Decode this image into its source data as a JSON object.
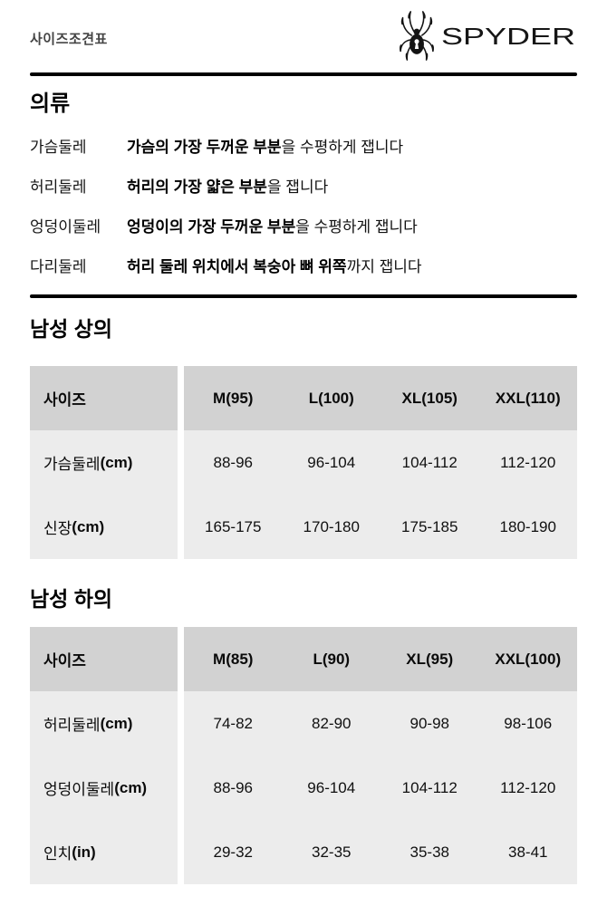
{
  "header": {
    "title": "사이즈조견표",
    "brand": "SPYDER"
  },
  "guide": {
    "heading": "의류",
    "rows": [
      {
        "label": "가슴둘레",
        "bold": "가슴의 가장 두꺼운 부분",
        "rest": "을 수평하게 잽니다"
      },
      {
        "label": "허리둘레",
        "bold": "허리의 가장 얇은 부분",
        "rest": "을 잽니다"
      },
      {
        "label": "엉덩이둘레",
        "bold": "엉덩이의 가장 두꺼운 부분",
        "rest": "을 수평하게 잽니다"
      },
      {
        "label": "다리둘레",
        "bold": "허리 둘레 위치에서 복숭아 뼈 위쪽",
        "rest": "까지 잽니다"
      }
    ]
  },
  "tables": [
    {
      "heading": "남성 상의",
      "header_label": "사이즈",
      "columns": [
        "M(95)",
        "L(100)",
        "XL(105)",
        "XXL(110)"
      ],
      "rows": [
        {
          "label": "가슴둘레",
          "unit": "(cm)",
          "values": [
            "88-96",
            "96-104",
            "104-112",
            "112-120"
          ]
        },
        {
          "label": "신장",
          "unit": "(cm)",
          "values": [
            "165-175",
            "170-180",
            "175-185",
            "180-190"
          ]
        }
      ]
    },
    {
      "heading": "남성 하의",
      "header_label": "사이즈",
      "columns": [
        "M(85)",
        "L(90)",
        "XL(95)",
        "XXL(100)"
      ],
      "rows": [
        {
          "label": "허리둘레",
          "unit": "(cm)",
          "values": [
            "74-82",
            "82-90",
            "90-98",
            "98-106"
          ]
        },
        {
          "label": "엉덩이둘레",
          "unit": "(cm)",
          "values": [
            "88-96",
            "96-104",
            "104-112",
            "112-120"
          ]
        },
        {
          "label": "인치",
          "unit": "(in)",
          "values": [
            "29-32",
            "32-35",
            "35-38",
            "38-41"
          ]
        }
      ]
    }
  ],
  "colors": {
    "divider": "#000000",
    "table_header_bg": "#d2d2d2",
    "table_body_bg": "#ececec",
    "title_color": "#444444",
    "brand_color": "#161616"
  }
}
